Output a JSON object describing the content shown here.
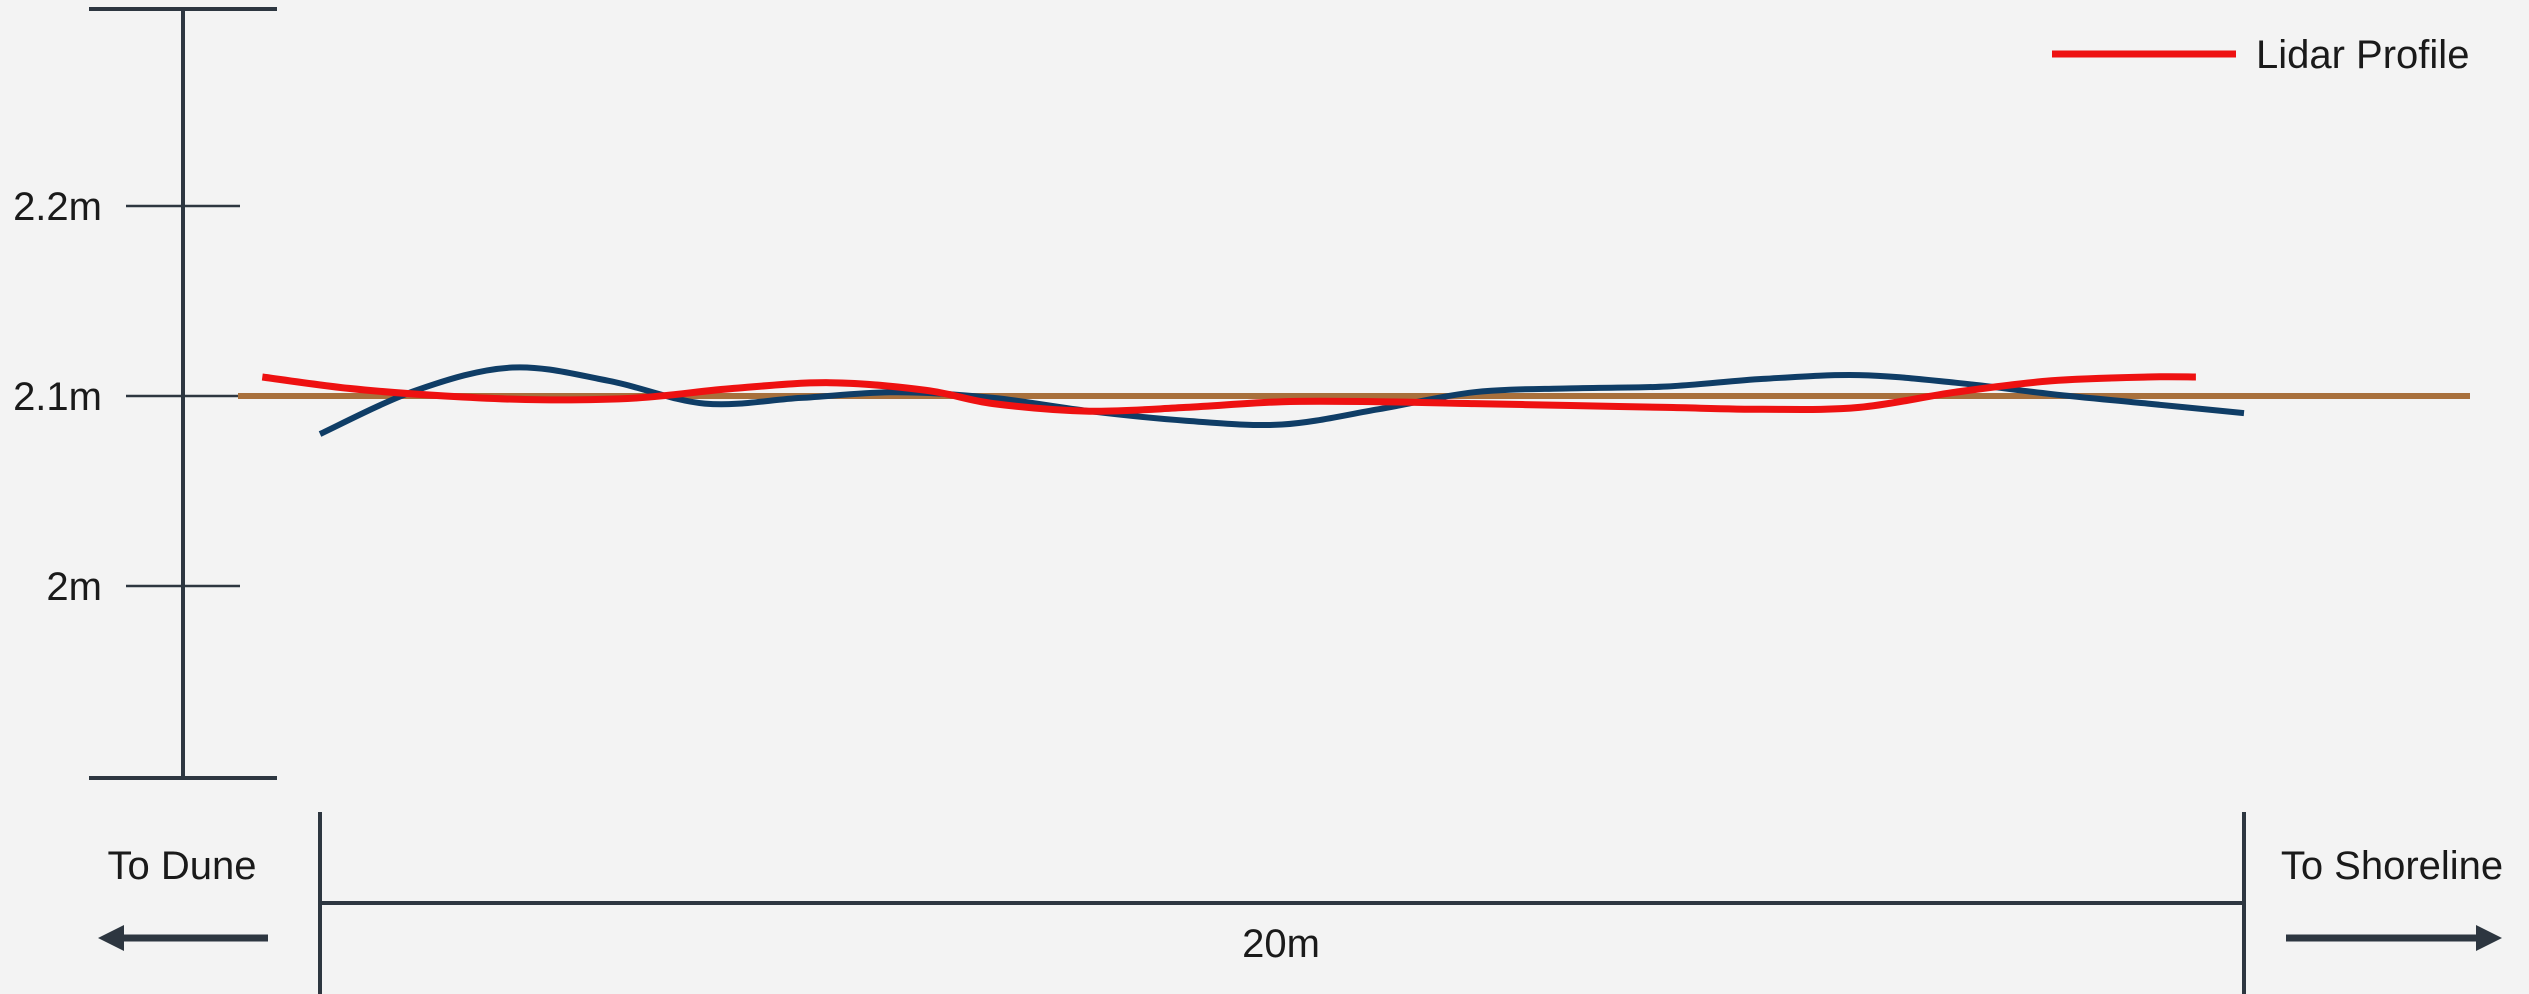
{
  "chart_data": {
    "type": "line",
    "title": "",
    "xlabel": "",
    "ylabel": "",
    "ylim": [
      1.9,
      2.3
    ],
    "xlim": [
      0,
      20
    ],
    "y_ticks": [
      {
        "value": 2.2,
        "label": "2.2m"
      },
      {
        "value": 2.1,
        "label": "2.1m"
      },
      {
        "value": 2.0,
        "label": "2m"
      }
    ],
    "grid": false,
    "legend": {
      "position": "top-right",
      "entries": [
        "Lidar Profile"
      ]
    },
    "annotations": {
      "left": "To Dune",
      "right": "To Shoreline",
      "span": "20m"
    },
    "reference_line": {
      "value": 2.1,
      "color": "#a8703c"
    },
    "series": [
      {
        "color": "#0f3d66",
        "x": [
          0,
          1,
          2,
          3,
          4,
          5,
          6,
          7,
          8,
          9,
          10,
          11,
          12,
          13,
          14,
          15,
          16,
          17,
          18,
          19,
          20
        ],
        "y": [
          2.08,
          2.103,
          2.115,
          2.108,
          2.096,
          2.099,
          2.102,
          2.099,
          2.092,
          2.087,
          2.085,
          2.093,
          2.102,
          2.104,
          2.105,
          2.109,
          2.111,
          2.107,
          2.101,
          2.096,
          2.091
        ]
      },
      {
        "name": "Lidar Profile",
        "color": "#ee1111",
        "x": [
          -0.6,
          0.3,
          1.3,
          2.3,
          3.3,
          4.3,
          5.3,
          6.3,
          7.0,
          8.0,
          9.0,
          10.0,
          11.0,
          12.0,
          13.0,
          14.0,
          15.0,
          16.0,
          17.0,
          18.0,
          19.0,
          19.5
        ],
        "y": [
          2.11,
          2.104,
          2.1,
          2.098,
          2.099,
          2.104,
          2.107,
          2.103,
          2.096,
          2.092,
          2.094,
          2.097,
          2.097,
          2.096,
          2.095,
          2.094,
          2.093,
          2.094,
          2.102,
          2.108,
          2.11,
          2.11
        ]
      }
    ]
  }
}
